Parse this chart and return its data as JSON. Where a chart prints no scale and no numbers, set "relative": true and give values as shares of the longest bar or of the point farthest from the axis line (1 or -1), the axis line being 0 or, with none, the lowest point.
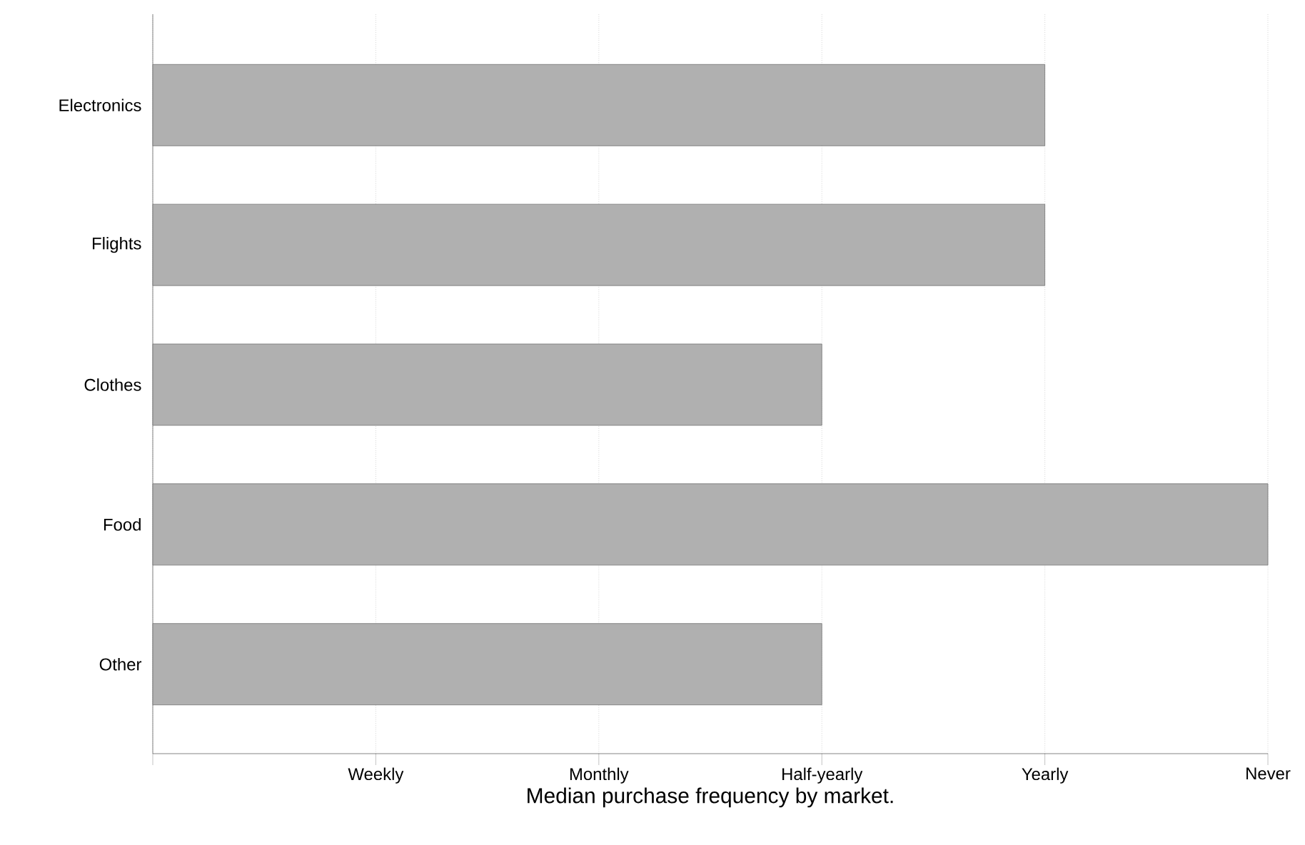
{
  "chart_data": {
    "type": "bar",
    "orientation": "horizontal",
    "relative": true,
    "xlabel": "Median purchase frequency by market.",
    "categories": [
      "Electronics",
      "Flights",
      "Clothes",
      "Food",
      "Other"
    ],
    "values": [
      0.8,
      0.8,
      0.6,
      1,
      0.6
    ],
    "color": "#b0b0b0",
    "annotations": [
      "Weekly",
      "Monthly",
      "Half-yearly",
      "Yearly",
      "Never"
    ],
    "grid": "x"
  }
}
